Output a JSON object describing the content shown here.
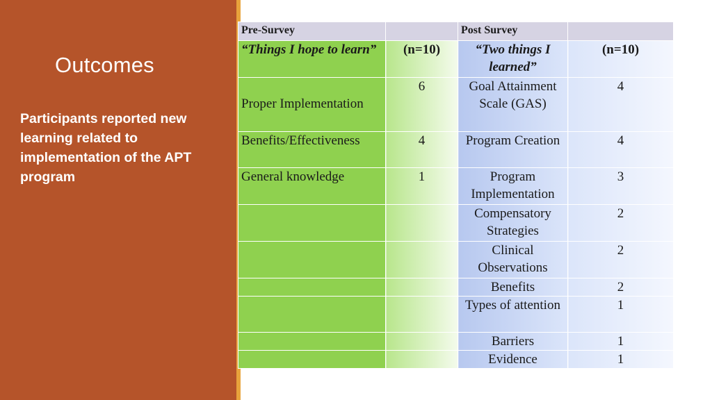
{
  "slide": {
    "title": "Outcomes",
    "body": "Participants reported new learning related to implementation of the APT program"
  },
  "table": {
    "header": {
      "pre_survey": "Pre-Survey",
      "post_survey": "Post Survey"
    },
    "subheader": {
      "pre_question": "“Things I hope to learn”",
      "pre_n": "(n=10)",
      "post_question": "“Two things I learned”",
      "post_n": "(n=10)"
    },
    "rows": [
      {
        "pre_item": "Proper Implementation",
        "pre_count": "6",
        "post_item": "Goal Attainment Scale (GAS)",
        "post_count": "4"
      },
      {
        "pre_item": "Benefits/Effectiveness",
        "pre_count": "4",
        "post_item": "Program Creation",
        "post_count": "4"
      },
      {
        "pre_item": "General knowledge",
        "pre_count": "1",
        "post_item": "Program Implementation",
        "post_count": "3"
      },
      {
        "pre_item": "",
        "pre_count": "",
        "post_item": "Compensatory Strategies",
        "post_count": "2"
      },
      {
        "pre_item": "",
        "pre_count": "",
        "post_item": "Clinical Observations",
        "post_count": "2"
      },
      {
        "pre_item": "",
        "pre_count": "",
        "post_item": "Benefits",
        "post_count": "2"
      },
      {
        "pre_item": "",
        "pre_count": "",
        "post_item": "Types of attention",
        "post_count": "1"
      },
      {
        "pre_item": "",
        "pre_count": "",
        "post_item": "Barriers",
        "post_count": "1"
      },
      {
        "pre_item": "",
        "pre_count": "",
        "post_item": "Evidence",
        "post_count": "1"
      }
    ]
  },
  "colors": {
    "panel": "#b5542a",
    "accent": "#e8a33c",
    "pre_green": "#8fd14f",
    "post_blue": "#b7c8ef",
    "header_lavender": "#d6d3e3"
  }
}
